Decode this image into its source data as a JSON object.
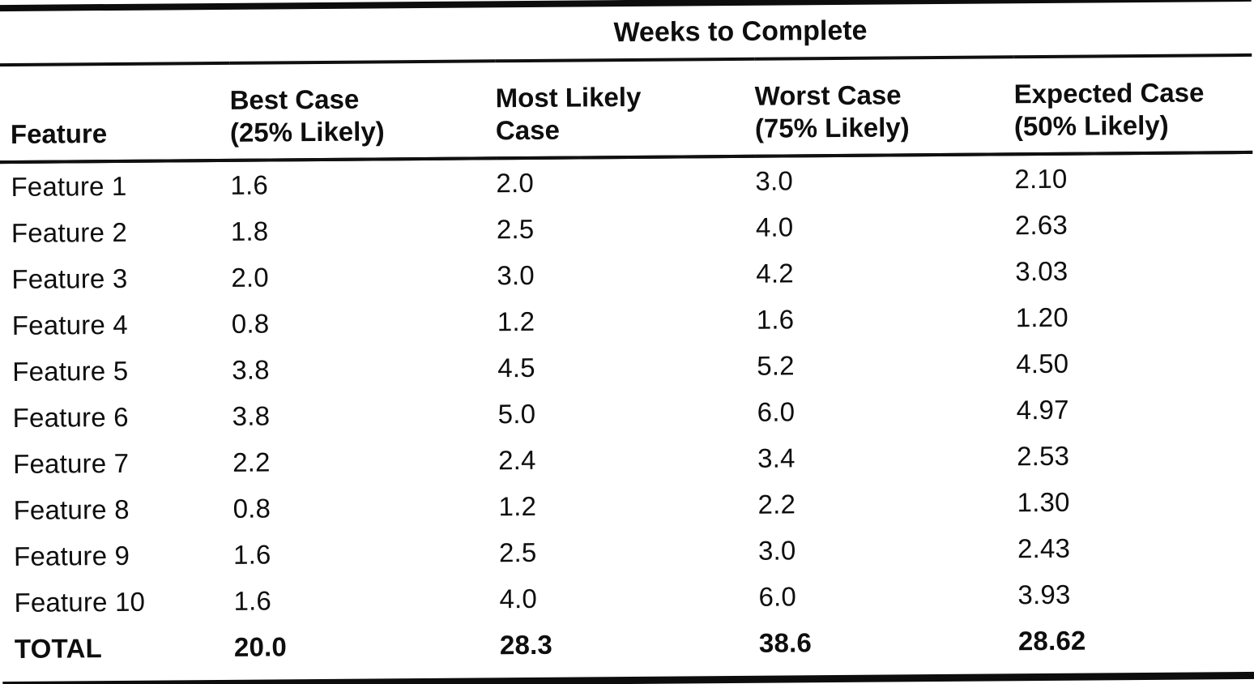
{
  "table": {
    "span_header": "Weeks to Complete",
    "columns": [
      {
        "label_line1": "Feature",
        "label_line2": ""
      },
      {
        "label_line1": "Best Case",
        "label_line2": "(25% Likely)"
      },
      {
        "label_line1": "Most Likely",
        "label_line2": "Case"
      },
      {
        "label_line1": "Worst Case",
        "label_line2": "(75% Likely)"
      },
      {
        "label_line1": "Expected Case",
        "label_line2": "(50% Likely)"
      }
    ],
    "rows": [
      {
        "feature": "Feature 1",
        "best": "1.6",
        "most_likely": "2.0",
        "worst": "3.0",
        "expected": "2.10"
      },
      {
        "feature": "Feature 2",
        "best": "1.8",
        "most_likely": "2.5",
        "worst": "4.0",
        "expected": "2.63"
      },
      {
        "feature": "Feature 3",
        "best": "2.0",
        "most_likely": "3.0",
        "worst": "4.2",
        "expected": "3.03"
      },
      {
        "feature": "Feature 4",
        "best": "0.8",
        "most_likely": "1.2",
        "worst": "1.6",
        "expected": "1.20"
      },
      {
        "feature": "Feature 5",
        "best": "3.8",
        "most_likely": "4.5",
        "worst": "5.2",
        "expected": "4.50"
      },
      {
        "feature": "Feature 6",
        "best": "3.8",
        "most_likely": "5.0",
        "worst": "6.0",
        "expected": "4.97"
      },
      {
        "feature": "Feature 7",
        "best": "2.2",
        "most_likely": "2.4",
        "worst": "3.4",
        "expected": "2.53"
      },
      {
        "feature": "Feature 8",
        "best": "0.8",
        "most_likely": "1.2",
        "worst": "2.2",
        "expected": "1.30"
      },
      {
        "feature": "Feature 9",
        "best": "1.6",
        "most_likely": "2.5",
        "worst": "3.0",
        "expected": "2.43"
      },
      {
        "feature": "Feature 10",
        "best": "1.6",
        "most_likely": "4.0",
        "worst": "6.0",
        "expected": "3.93"
      }
    ],
    "total_row": {
      "feature": "TOTAL",
      "best": "20.0",
      "most_likely": "28.3",
      "worst": "38.6",
      "expected": "28.62"
    }
  },
  "colors": {
    "text": "#0e0e0e",
    "rule": "#101010",
    "background": "#ffffff"
  },
  "chart_data": {
    "type": "table",
    "title": "Weeks to Complete",
    "columns": [
      "Feature",
      "Best Case (25% Likely)",
      "Most Likely Case",
      "Worst Case (75% Likely)",
      "Expected Case (50% Likely)"
    ],
    "rows": [
      [
        "Feature 1",
        1.6,
        2.0,
        3.0,
        2.1
      ],
      [
        "Feature 2",
        1.8,
        2.5,
        4.0,
        2.63
      ],
      [
        "Feature 3",
        2.0,
        3.0,
        4.2,
        3.03
      ],
      [
        "Feature 4",
        0.8,
        1.2,
        1.6,
        1.2
      ],
      [
        "Feature 5",
        3.8,
        4.5,
        5.2,
        4.5
      ],
      [
        "Feature 6",
        3.8,
        5.0,
        6.0,
        4.97
      ],
      [
        "Feature 7",
        2.2,
        2.4,
        3.4,
        2.53
      ],
      [
        "Feature 8",
        0.8,
        1.2,
        2.2,
        1.3
      ],
      [
        "Feature 9",
        1.6,
        2.5,
        3.0,
        2.43
      ],
      [
        "Feature 10",
        1.6,
        4.0,
        6.0,
        3.93
      ],
      [
        "TOTAL",
        20.0,
        28.3,
        38.6,
        28.62
      ]
    ]
  }
}
